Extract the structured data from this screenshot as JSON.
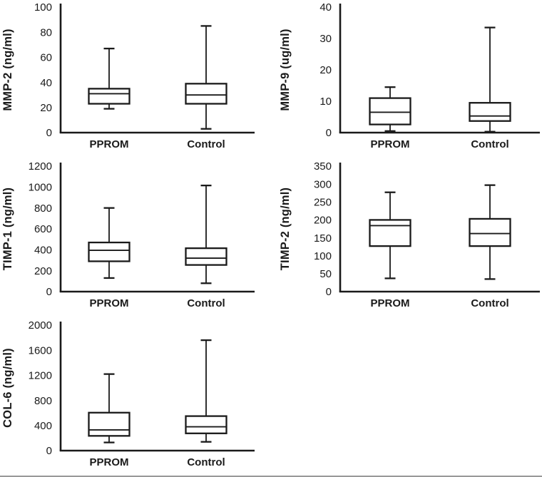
{
  "figure": {
    "description": "Box-and-whisker plots comparing PPROM and Control groups for MMP-2, MMP-9, TIMP-1, TIMP-2 and COL-6 concentrations",
    "bottom_rule_color": "#999999"
  },
  "colors": {
    "line": "#1a1a1a",
    "text": "#1a1a1a",
    "box_fill": "#ffffff",
    "background": "#ffffff"
  },
  "chart_data": [
    {
      "type": "box",
      "id": "mmp2",
      "ylabel": "MMP-2 (ng/ml)",
      "categories": [
        "PPROM",
        "Control"
      ],
      "ylim": [
        0,
        100
      ],
      "yticks": [
        0,
        20,
        40,
        60,
        80,
        100
      ],
      "grid_pos": {
        "row": 0,
        "col": 0
      },
      "legend": "none",
      "series": [
        {
          "name": "PPROM",
          "whisker_low": 19,
          "q1": 23,
          "median": 31,
          "q3": 35,
          "whisker_high": 67
        },
        {
          "name": "Control",
          "whisker_low": 3,
          "q1": 23,
          "median": 30,
          "q3": 39,
          "whisker_high": 85
        }
      ]
    },
    {
      "type": "box",
      "id": "mmp9",
      "ylabel": "MMP-9 (ug/ml)",
      "categories": [
        "PPROM",
        "Control"
      ],
      "ylim": [
        0,
        40
      ],
      "yticks": [
        0,
        10,
        20,
        30,
        40
      ],
      "grid_pos": {
        "row": 0,
        "col": 1
      },
      "legend": "none",
      "series": [
        {
          "name": "PPROM",
          "whisker_low": 0.5,
          "q1": 2.6,
          "median": 6.5,
          "q3": 11,
          "whisker_high": 14.5
        },
        {
          "name": "Control",
          "whisker_low": 0.3,
          "q1": 3.7,
          "median": 5.3,
          "q3": 9.5,
          "whisker_high": 33.5
        }
      ]
    },
    {
      "type": "box",
      "id": "timp1",
      "ylabel": "TIMP-1 (ng/ml)",
      "categories": [
        "PPROM",
        "Control"
      ],
      "ylim": [
        0,
        1200
      ],
      "yticks": [
        0,
        200,
        400,
        600,
        800,
        1000,
        1200
      ],
      "grid_pos": {
        "row": 1,
        "col": 0
      },
      "legend": "none",
      "series": [
        {
          "name": "PPROM",
          "whisker_low": 130,
          "q1": 290,
          "median": 395,
          "q3": 470,
          "whisker_high": 800
        },
        {
          "name": "Control",
          "whisker_low": 80,
          "q1": 255,
          "median": 320,
          "q3": 415,
          "whisker_high": 1015
        }
      ]
    },
    {
      "type": "box",
      "id": "timp2",
      "ylabel": "TIMP-2 (ng/ml)",
      "categories": [
        "PPROM",
        "Control"
      ],
      "ylim": [
        0,
        350
      ],
      "yticks": [
        0,
        50,
        100,
        150,
        200,
        250,
        300,
        350
      ],
      "grid_pos": {
        "row": 1,
        "col": 1
      },
      "legend": "none",
      "series": [
        {
          "name": "PPROM",
          "whisker_low": 37,
          "q1": 127,
          "median": 184,
          "q3": 200,
          "whisker_high": 277
        },
        {
          "name": "Control",
          "whisker_low": 35,
          "q1": 127,
          "median": 162,
          "q3": 203,
          "whisker_high": 297
        }
      ]
    },
    {
      "type": "box",
      "id": "col6",
      "ylabel": "COL-6 (ng/ml)",
      "categories": [
        "PPROM",
        "Control"
      ],
      "ylim": [
        0,
        2000
      ],
      "yticks": [
        0,
        400,
        800,
        1200,
        1600,
        2000
      ],
      "grid_pos": {
        "row": 2,
        "col": 0
      },
      "legend": "none",
      "series": [
        {
          "name": "PPROM",
          "whisker_low": 130,
          "q1": 235,
          "median": 330,
          "q3": 605,
          "whisker_high": 1220
        },
        {
          "name": "Control",
          "whisker_low": 140,
          "q1": 275,
          "median": 380,
          "q3": 550,
          "whisker_high": 1760
        }
      ]
    }
  ]
}
